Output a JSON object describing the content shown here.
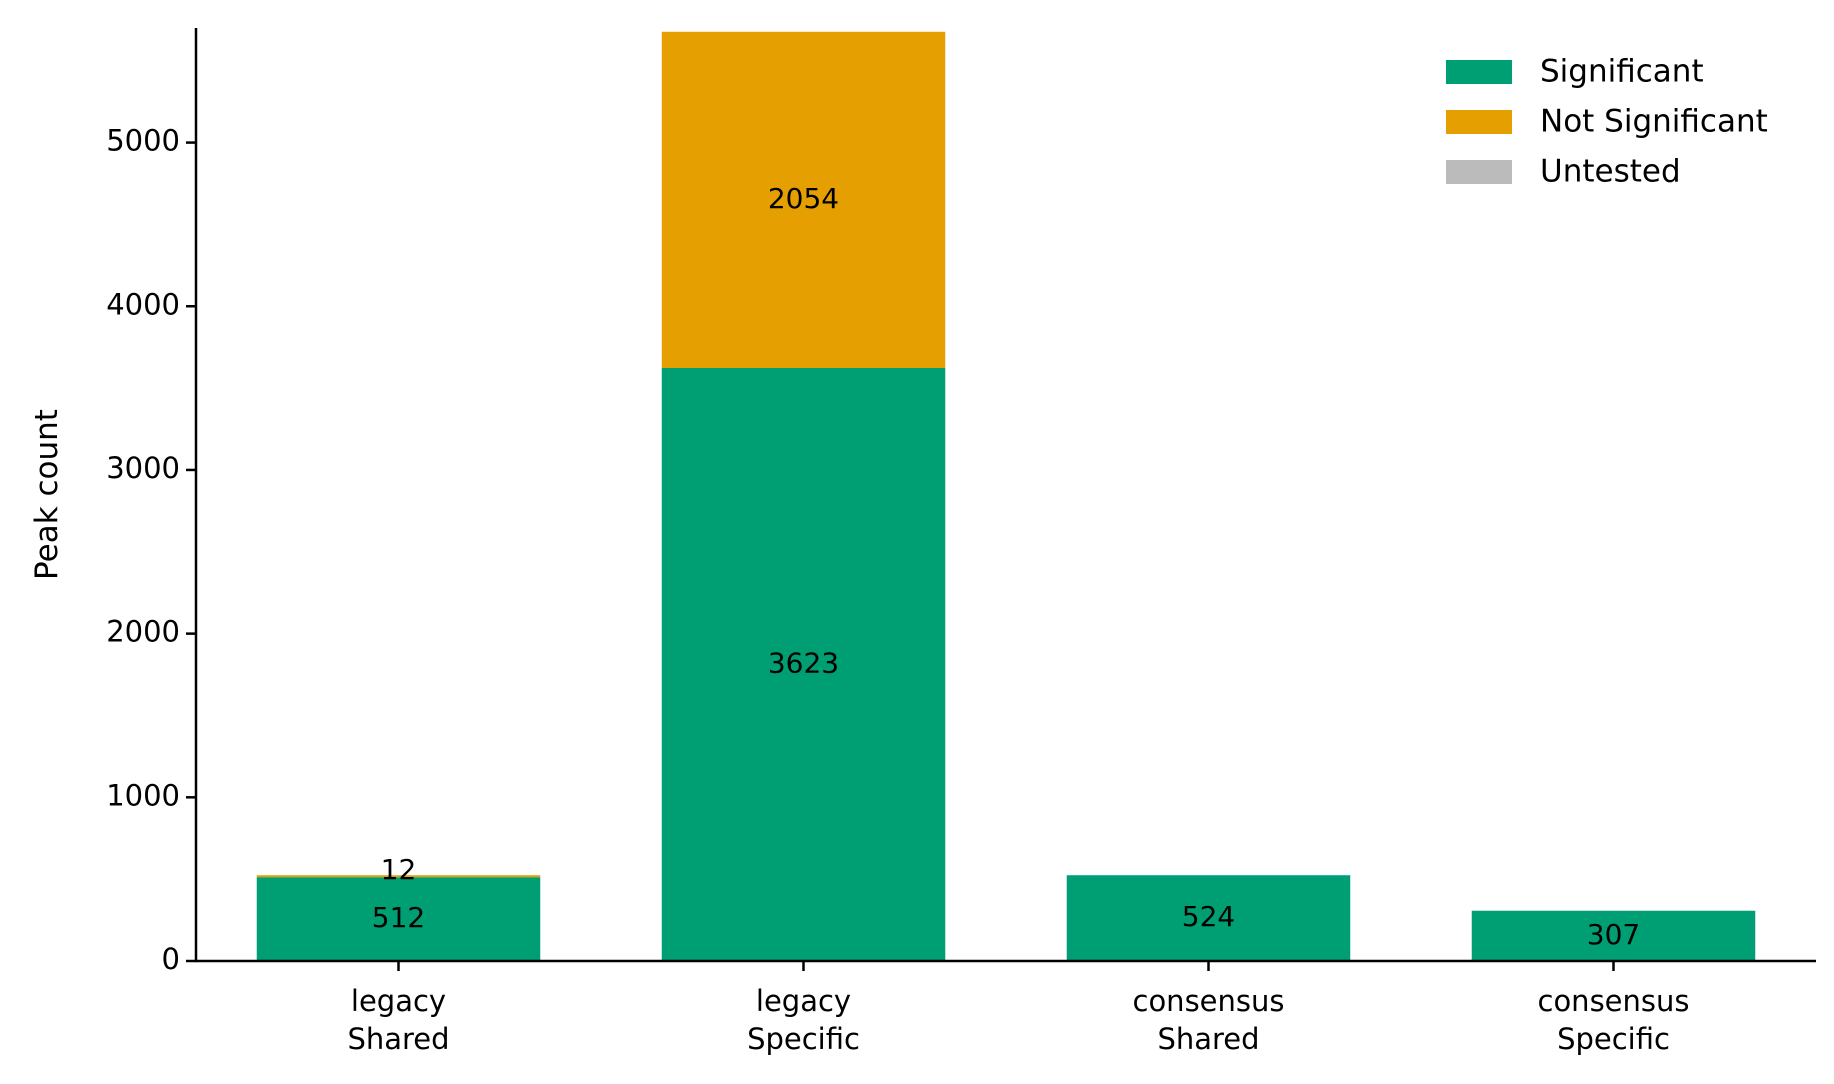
{
  "chart_data": {
    "type": "bar",
    "stacked": true,
    "title": "",
    "xlabel": "",
    "ylabel": "Peak count",
    "ylim": [
      0,
      5700
    ],
    "yticks": [
      0,
      1000,
      2000,
      3000,
      4000,
      5000
    ],
    "grid": false,
    "legend_position": "top-right",
    "categories": [
      [
        "legacy",
        "Shared"
      ],
      [
        "legacy",
        "Specific"
      ],
      [
        "consensus",
        "Shared"
      ],
      [
        "consensus",
        "Specific"
      ]
    ],
    "series": [
      {
        "name": "Significant",
        "color": "#009E73",
        "values": [
          512,
          3623,
          524,
          307
        ]
      },
      {
        "name": "Not Significant",
        "color": "#E69F00",
        "values": [
          12,
          2054,
          0,
          0
        ]
      },
      {
        "name": "Untested",
        "color": "#BBBBBB",
        "values": [
          0,
          0,
          0,
          0
        ]
      }
    ]
  }
}
